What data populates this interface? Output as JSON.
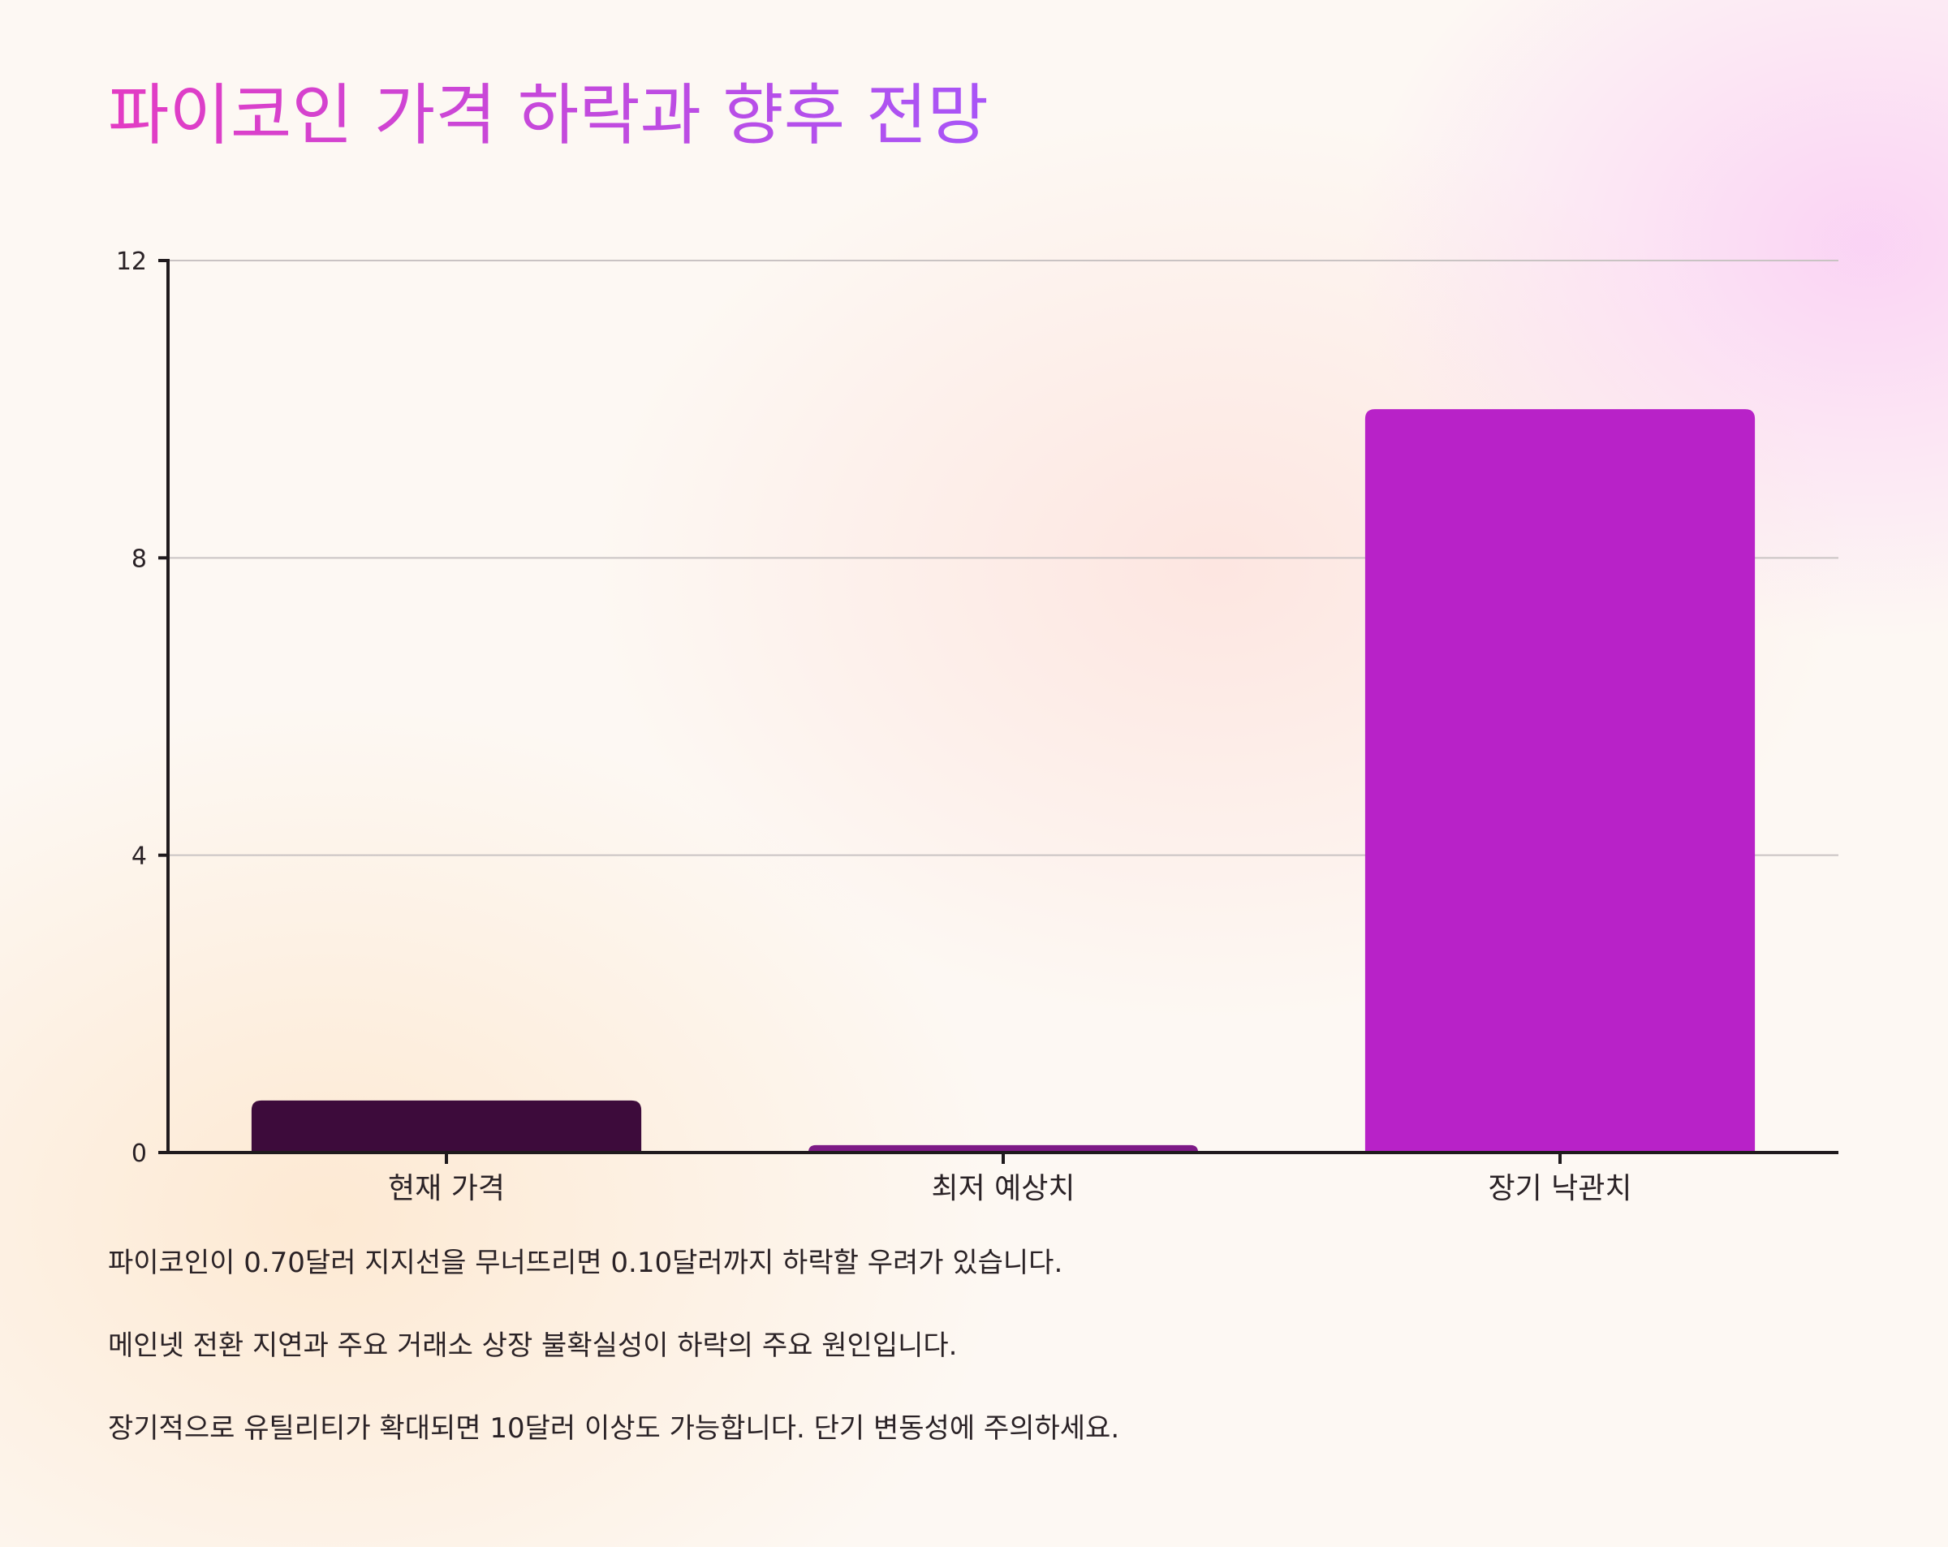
{
  "title": "파이코인 가격 하락과 향후 전망",
  "colors": {
    "title_gradient": [
      "#e33cc3",
      "#a855f7"
    ],
    "axis": "#1f1a1d",
    "grid": "#c9c3c3"
  },
  "chart_data": {
    "type": "bar",
    "categories": [
      "현재 가격",
      "최저 예상치",
      "장기 낙관치"
    ],
    "values": [
      0.7,
      0.1,
      10
    ],
    "colors": [
      "#3d0b3b",
      "#7d1a86",
      "#b822c8"
    ],
    "ylim": [
      0,
      12
    ],
    "yticks": [
      0,
      4,
      8,
      12
    ],
    "grid": true,
    "xlabel": "",
    "ylabel": ""
  },
  "notes": [
    "파이코인이 0.70달러 지지선을 무너뜨리면 0.10달러까지 하락할 우려가 있습니다.",
    "메인넷 전환 지연과 주요 거래소 상장 불확실성이 하락의 주요 원인입니다.",
    "장기적으로 유틸리티가 확대되면 10달러 이상도 가능합니다. 단기 변동성에 주의하세요."
  ]
}
